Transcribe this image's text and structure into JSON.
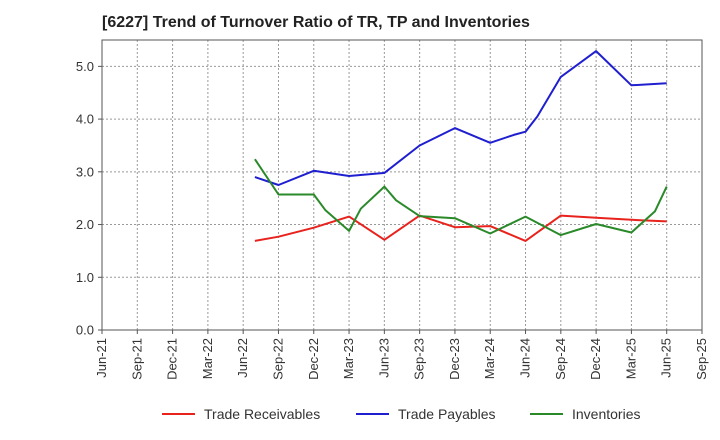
{
  "chart_data": {
    "type": "line",
    "title": "[6227]  Trend of Turnover Ratio of TR, TP and Inventories",
    "xlabel": "",
    "ylabel": "",
    "ylim": [
      0,
      5.5
    ],
    "yticks": [
      "0.0",
      "1.0",
      "2.0",
      "3.0",
      "4.0",
      "5.0"
    ],
    "x_tick_labels": [
      "Jun-21",
      "Sep-21",
      "Dec-21",
      "Mar-22",
      "Jun-22",
      "Sep-22",
      "Dec-22",
      "Mar-23",
      "Jun-23",
      "Sep-23",
      "Dec-23",
      "Mar-24",
      "Jun-24",
      "Sep-24",
      "Dec-24",
      "Mar-25",
      "Jun-25",
      "Sep-25"
    ],
    "grid": true,
    "legend_position": "bottom",
    "x": [
      "Jul-22",
      "Aug-22",
      "Sep-22",
      "Oct-22",
      "Nov-22",
      "Dec-22",
      "Jan-23",
      "Feb-23",
      "Mar-23",
      "Apr-23",
      "May-23",
      "Jun-23",
      "Jul-23",
      "Aug-23",
      "Sep-23",
      "Oct-23",
      "Nov-23",
      "Dec-23",
      "Jan-24",
      "Feb-24",
      "Mar-24",
      "Apr-24",
      "May-24",
      "Jun-24",
      "Jul-24",
      "Aug-24",
      "Sep-24",
      "Oct-24",
      "Nov-24",
      "Dec-24",
      "Jan-25",
      "Feb-25",
      "Mar-25",
      "Apr-25",
      "May-25",
      "Jun-25"
    ],
    "series": [
      {
        "name": "Trade Receivables",
        "color": "#e8231e",
        "values": [
          1.69,
          null,
          1.77,
          null,
          null,
          1.94,
          null,
          null,
          2.15,
          null,
          null,
          1.71,
          null,
          null,
          2.17,
          null,
          null,
          1.95,
          null,
          null,
          1.97,
          null,
          null,
          1.69,
          null,
          null,
          2.17,
          null,
          null,
          2.13,
          null,
          null,
          2.09,
          null,
          null,
          2.06
        ]
      },
      {
        "name": "Trade Payables",
        "color": "#1f1fd0",
        "values": [
          2.9,
          null,
          2.75,
          null,
          null,
          3.02,
          null,
          null,
          2.92,
          null,
          null,
          2.98,
          null,
          null,
          3.5,
          null,
          null,
          3.83,
          null,
          null,
          3.55,
          null,
          3.7,
          3.76,
          4.05,
          null,
          4.8,
          null,
          null,
          5.29,
          null,
          null,
          4.64,
          null,
          null,
          4.68
        ]
      },
      {
        "name": "Inventories",
        "color": "#2a8a2a",
        "values": [
          3.24,
          null,
          2.57,
          null,
          null,
          2.57,
          2.27,
          null,
          1.88,
          2.3,
          null,
          2.72,
          2.46,
          null,
          2.16,
          null,
          null,
          2.12,
          null,
          null,
          1.83,
          null,
          null,
          2.15,
          null,
          null,
          1.8,
          null,
          null,
          2.01,
          null,
          null,
          1.85,
          null,
          2.25,
          2.72
        ]
      }
    ]
  }
}
